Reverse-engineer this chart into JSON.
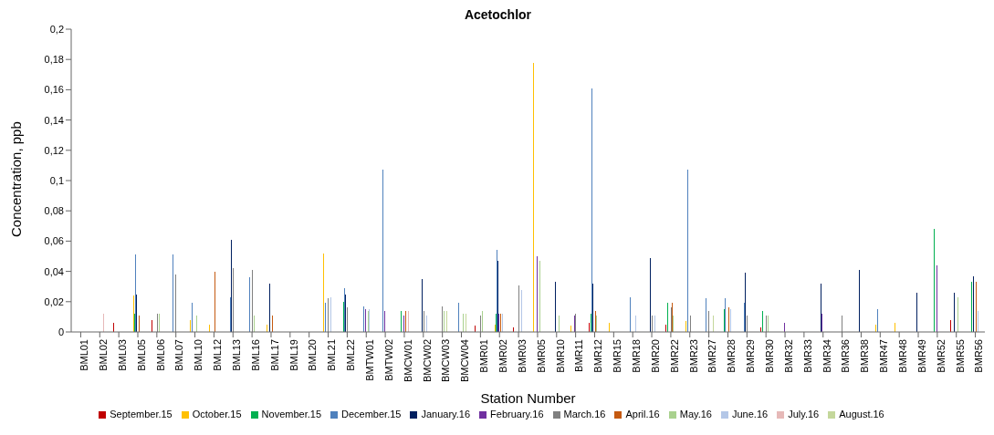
{
  "chart_data": {
    "type": "bar",
    "title": "Acetochlor",
    "xlabel": "Station Number",
    "ylabel": "Concentration, ppb",
    "categories": [
      "BML01",
      "BML02",
      "BML03",
      "BML05",
      "BML06",
      "BML07",
      "BML10",
      "BML12",
      "BML13",
      "BML16",
      "BML17",
      "BML19",
      "BML20",
      "BML21",
      "BML22",
      "BMTW01",
      "BMTW02",
      "BMCW01",
      "BMCW02",
      "BMCW03",
      "BMCW04",
      "BMR01",
      "BMR02",
      "BMR03",
      "BMR05",
      "BMR10",
      "BMR11",
      "BMR12",
      "BMR15",
      "BMR18",
      "BMR20",
      "BMR22",
      "BMR23",
      "BMR27",
      "BMR28",
      "BMR29",
      "BMR30",
      "BMR32",
      "BMR33",
      "BMR34",
      "BMR36",
      "BMR38",
      "BMR47",
      "BMR48",
      "BMR49",
      "BMR52",
      "BMR55",
      "BMR56"
    ],
    "series": [
      {
        "name": "September.15",
        "color": "#c00000",
        "values": [
          null,
          null,
          0.006,
          null,
          0.008,
          null,
          null,
          null,
          null,
          null,
          null,
          null,
          null,
          null,
          null,
          null,
          null,
          null,
          null,
          null,
          null,
          0.004,
          null,
          0.003,
          null,
          null,
          null,
          0.006,
          null,
          null,
          null,
          0.005,
          null,
          null,
          null,
          null,
          0.003,
          null,
          null,
          null,
          null,
          null,
          null,
          null,
          null,
          null,
          0.008,
          null
        ]
      },
      {
        "name": "October.15",
        "color": "#ffc000",
        "values": [
          null,
          null,
          null,
          0.024,
          null,
          null,
          0.008,
          0.005,
          null,
          null,
          0.005,
          null,
          null,
          0.052,
          null,
          null,
          null,
          null,
          null,
          null,
          null,
          null,
          0.005,
          null,
          0.178,
          null,
          0.004,
          null,
          0.006,
          null,
          null,
          null,
          0.007,
          null,
          null,
          null,
          null,
          null,
          null,
          null,
          null,
          null,
          0.005,
          0.006,
          null,
          null,
          null,
          null
        ]
      },
      {
        "name": "November.15",
        "color": "#00b050",
        "values": [
          null,
          null,
          null,
          0.012,
          null,
          null,
          null,
          null,
          null,
          null,
          null,
          null,
          null,
          null,
          0.02,
          null,
          null,
          0.014,
          null,
          null,
          null,
          null,
          0.012,
          null,
          null,
          null,
          null,
          0.012,
          null,
          null,
          null,
          0.019,
          null,
          null,
          0.015,
          null,
          0.014,
          null,
          null,
          null,
          null,
          null,
          null,
          null,
          null,
          0.068,
          null,
          0.033
        ]
      },
      {
        "name": "December.15",
        "color": "#4f81bd",
        "values": [
          null,
          null,
          null,
          0.051,
          null,
          0.051,
          0.019,
          null,
          0.023,
          0.036,
          null,
          null,
          null,
          0.019,
          0.029,
          0.017,
          0.107,
          null,
          null,
          null,
          0.019,
          null,
          0.054,
          null,
          null,
          null,
          null,
          0.161,
          null,
          0.023,
          null,
          null,
          0.107,
          0.022,
          0.022,
          0.019,
          null,
          null,
          null,
          null,
          null,
          null,
          0.015,
          null,
          null,
          null,
          null,
          null
        ]
      },
      {
        "name": "January.16",
        "color": "#002060",
        "values": [
          null,
          null,
          null,
          0.025,
          null,
          null,
          null,
          null,
          0.061,
          null,
          0.032,
          null,
          null,
          null,
          0.025,
          null,
          null,
          null,
          0.035,
          null,
          null,
          null,
          0.047,
          null,
          null,
          0.033,
          null,
          0.032,
          null,
          null,
          0.049,
          null,
          null,
          null,
          null,
          0.039,
          null,
          null,
          null,
          0.032,
          null,
          0.041,
          null,
          null,
          0.026,
          null,
          0.026,
          0.037
        ]
      },
      {
        "name": "February.16",
        "color": "#7030a0",
        "values": [
          null,
          null,
          null,
          null,
          null,
          null,
          null,
          null,
          null,
          null,
          null,
          null,
          null,
          null,
          null,
          0.015,
          0.014,
          0.011,
          null,
          null,
          null,
          null,
          0.012,
          null,
          0.05,
          null,
          0.011,
          null,
          null,
          null,
          null,
          null,
          null,
          null,
          null,
          null,
          null,
          0.006,
          null,
          0.012,
          null,
          null,
          null,
          null,
          null,
          0.044,
          null,
          null
        ]
      },
      {
        "name": "March.16",
        "color": "#808080",
        "values": [
          null,
          null,
          null,
          null,
          0.012,
          0.038,
          null,
          null,
          0.042,
          0.041,
          null,
          null,
          null,
          0.022,
          0.016,
          null,
          null,
          null,
          0.014,
          0.017,
          null,
          0.011,
          null,
          0.031,
          null,
          null,
          0.012,
          null,
          null,
          null,
          0.011,
          0.016,
          0.011,
          0.014,
          null,
          0.011,
          0.011,
          null,
          null,
          null,
          0.011,
          null,
          null,
          null,
          null,
          null,
          null,
          null
        ]
      },
      {
        "name": "April.16",
        "color": "#c55a11",
        "values": [
          null,
          null,
          null,
          0.011,
          null,
          null,
          null,
          0.04,
          null,
          null,
          0.011,
          null,
          null,
          null,
          null,
          null,
          null,
          0.014,
          null,
          null,
          null,
          null,
          0.012,
          null,
          null,
          null,
          null,
          0.014,
          null,
          null,
          null,
          0.019,
          null,
          null,
          0.016,
          null,
          null,
          null,
          null,
          null,
          null,
          null,
          null,
          null,
          null,
          null,
          null,
          0.033
        ]
      },
      {
        "name": "May.16",
        "color": "#a9d18e",
        "values": [
          null,
          null,
          null,
          null,
          0.012,
          null,
          0.011,
          null,
          null,
          0.011,
          null,
          null,
          null,
          null,
          null,
          0.014,
          null,
          null,
          null,
          0.014,
          0.012,
          0.014,
          null,
          null,
          0.047,
          0.011,
          null,
          0.011,
          null,
          null,
          null,
          0.011,
          null,
          null,
          null,
          null,
          0.011,
          null,
          null,
          null,
          null,
          null,
          null,
          null,
          null,
          null,
          0.023,
          null
        ]
      },
      {
        "name": "June.16",
        "color": "#b4c7e7",
        "values": [
          null,
          null,
          null,
          null,
          null,
          null,
          null,
          null,
          null,
          null,
          null,
          null,
          null,
          0.023,
          null,
          0.015,
          null,
          null,
          0.011,
          null,
          null,
          null,
          0.012,
          0.028,
          null,
          null,
          null,
          null,
          null,
          0.011,
          0.011,
          null,
          null,
          null,
          0.015,
          null,
          null,
          null,
          null,
          null,
          null,
          null,
          null,
          null,
          null,
          null,
          null,
          0.014
        ]
      },
      {
        "name": "July.16",
        "color": "#e6b9b8",
        "values": [
          null,
          0.012,
          null,
          null,
          null,
          null,
          null,
          null,
          null,
          null,
          null,
          null,
          null,
          null,
          null,
          null,
          null,
          0.014,
          null,
          null,
          null,
          null,
          null,
          null,
          null,
          null,
          null,
          null,
          null,
          null,
          null,
          null,
          null,
          null,
          null,
          null,
          null,
          null,
          null,
          null,
          null,
          null,
          null,
          null,
          null,
          null,
          null,
          null
        ]
      },
      {
        "name": "August.16",
        "color": "#c4d79b",
        "values": [
          null,
          null,
          null,
          null,
          null,
          null,
          null,
          null,
          null,
          null,
          null,
          null,
          null,
          null,
          null,
          null,
          null,
          null,
          null,
          0.014,
          0.012,
          null,
          null,
          null,
          null,
          null,
          null,
          null,
          null,
          null,
          null,
          null,
          null,
          0.011,
          null,
          null,
          null,
          null,
          null,
          null,
          null,
          null,
          null,
          null,
          null,
          null,
          null,
          null
        ]
      }
    ],
    "ylim": [
      0,
      0.2
    ],
    "yticks": [
      0,
      {
        "value": 0.02,
        "label": "0,02"
      },
      {
        "value": 0.04,
        "label": "0,04"
      },
      {
        "value": 0.06,
        "label": "0,06"
      },
      {
        "value": 0.08,
        "label": "0,08"
      },
      {
        "value": 0.1,
        "label": "0,1"
      },
      {
        "value": 0.12,
        "label": "0,12"
      },
      {
        "value": 0.14,
        "label": "0,14"
      },
      {
        "value": 0.16,
        "label": "0,16"
      },
      {
        "value": 0.18,
        "label": "0,18"
      },
      {
        "value": 0.2,
        "label": "0,2"
      }
    ],
    "legend": "bottom",
    "grid": false
  }
}
